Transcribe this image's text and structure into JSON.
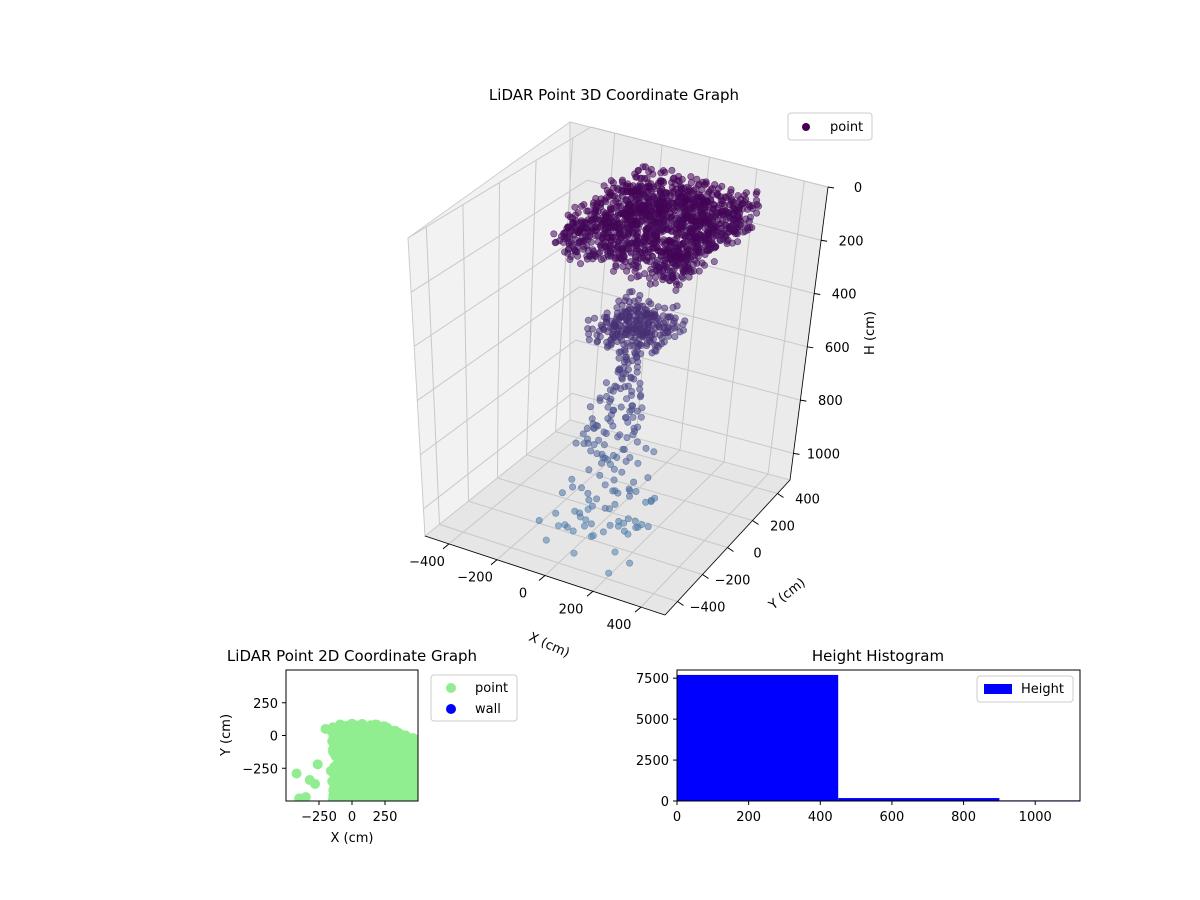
{
  "chart_data": [
    {
      "type": "scatter",
      "projection": "3d",
      "title": "LiDAR Point 3D Coordinate Graph",
      "xlabel": "X (cm)",
      "ylabel": "Y (cm)",
      "zlabel": "H (cm)",
      "xlim": [
        -500,
        500
      ],
      "ylim": [
        -500,
        500
      ],
      "zlim": [
        1100,
        0
      ],
      "xticks": [
        -400,
        -200,
        0,
        200,
        400
      ],
      "yticks": [
        -400,
        -200,
        0,
        200,
        400
      ],
      "zticks": [
        0,
        200,
        400,
        600,
        800,
        1000
      ],
      "z_axis_inverted": true,
      "grid": true,
      "colormap": "viridis",
      "legend_position": "upper-right",
      "series": [
        {
          "name": "point",
          "color": "#440154",
          "note_for_values": "dense cluster near H 0-150 across X -200..300, Y -100..400; a second cluster near H 400; sparse points falling to H 1100",
          "clusters": [
            {
              "x_range": [
                -220,
                300
              ],
              "y_range": [
                -100,
                420
              ],
              "h_range": [
                20,
                160
              ]
            },
            {
              "x_range": [
                -100,
                150
              ],
              "y_range": [
                -50,
                200
              ],
              "h_range": [
                380,
                480
              ]
            }
          ],
          "sparse_points": [
            {
              "x": 40,
              "y": 60,
              "h": 540
            },
            {
              "x": 10,
              "y": -20,
              "h": 620
            },
            {
              "x": 90,
              "y": 30,
              "h": 700
            },
            {
              "x": -40,
              "y": -60,
              "h": 760
            },
            {
              "x": 60,
              "y": -110,
              "h": 820
            },
            {
              "x": 120,
              "y": 80,
              "h": 880
            },
            {
              "x": -90,
              "y": -150,
              "h": 930
            },
            {
              "x": 180,
              "y": -200,
              "h": 980
            },
            {
              "x": 30,
              "y": -260,
              "h": 1020
            },
            {
              "x": 260,
              "y": -330,
              "h": 1060
            },
            {
              "x": 200,
              "y": -380,
              "h": 1090
            },
            {
              "x": -150,
              "y": -280,
              "h": 1040
            }
          ]
        }
      ]
    },
    {
      "type": "scatter",
      "title": "LiDAR Point 2D Coordinate Graph",
      "xlabel": "X (cm)",
      "ylabel": "Y (cm)",
      "xlim": [
        -500,
        500
      ],
      "ylim": [
        -500,
        500
      ],
      "xticks": [
        -250,
        0,
        250
      ],
      "yticks": [
        250,
        0,
        -250
      ],
      "legend_position": "outside-right",
      "series": [
        {
          "name": "point",
          "color": "#90ee90",
          "points_sample": [
            [
              -420,
              -290
            ],
            [
              -400,
              -480
            ],
            [
              -350,
              -470
            ],
            [
              -320,
              -340
            ],
            [
              -280,
              -370
            ],
            [
              -260,
              -220
            ],
            [
              -200,
              50
            ],
            [
              -160,
              -270
            ],
            [
              -120,
              -380
            ],
            [
              -80,
              20
            ],
            [
              0,
              90
            ],
            [
              100,
              60
            ],
            [
              200,
              30
            ],
            [
              300,
              -40
            ],
            [
              400,
              -90
            ],
            [
              480,
              -150
            ]
          ],
          "filled_region": {
            "x_range": [
              -150,
              500
            ],
            "y_range": [
              -500,
              90
            ]
          }
        },
        {
          "name": "wall",
          "color": "#0000ff",
          "points_sample": []
        }
      ]
    },
    {
      "type": "bar",
      "subtype": "histogram",
      "title": "Height Histogram",
      "xlim": [
        0,
        1125
      ],
      "ylim": [
        0,
        8000
      ],
      "xticks": [
        0,
        200,
        400,
        600,
        800,
        1000
      ],
      "yticks": [
        0,
        2500,
        5000,
        7500
      ],
      "bins": [
        {
          "start": 0,
          "end": 450,
          "count": 7700
        },
        {
          "start": 450,
          "end": 900,
          "count": 180
        },
        {
          "start": 900,
          "end": 1125,
          "count": 40
        }
      ],
      "series": [
        {
          "name": "Height",
          "color": "#0000ff"
        }
      ],
      "legend_position": "upper-right"
    }
  ]
}
